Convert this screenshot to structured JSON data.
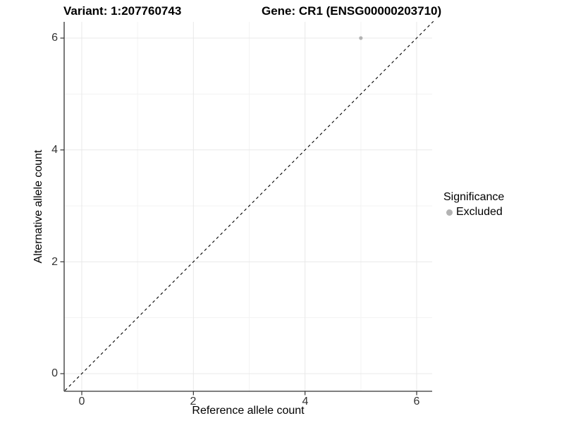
{
  "chart_data": {
    "type": "scatter",
    "titles": {
      "left": "Variant: 1:207760743",
      "right": "Gene: CR1 (ENSG00000203710)"
    },
    "xlabel": "Reference allele count",
    "ylabel": "Alternative allele count",
    "xlim": [
      -0.3,
      6.3
    ],
    "ylim": [
      -0.3,
      6.3
    ],
    "x_ticks": [
      0,
      2,
      4,
      6
    ],
    "y_ticks": [
      0,
      2,
      4,
      6
    ],
    "minor_gridlines": [
      1,
      3,
      5
    ],
    "grid": "on",
    "identity_line": {
      "style": "dashed",
      "from": [
        -0.3,
        -0.3
      ],
      "to": [
        6.3,
        6.3
      ],
      "color": "#000000"
    },
    "points": [
      {
        "x": 5,
        "y": 6,
        "series": "Excluded",
        "color": "#b3b3b3",
        "radius": 2.6
      }
    ],
    "legend": {
      "title": "Significance",
      "position": "right",
      "entries": [
        {
          "label": "Excluded",
          "color": "#b3b3b3"
        }
      ]
    },
    "colors": {
      "axis_line": "#333333",
      "tick_mark": "#333333",
      "tick_label": "#333333",
      "grid_major": "#e8e8e8",
      "grid_minor": "#f3f3f3",
      "background": "#ffffff"
    }
  }
}
